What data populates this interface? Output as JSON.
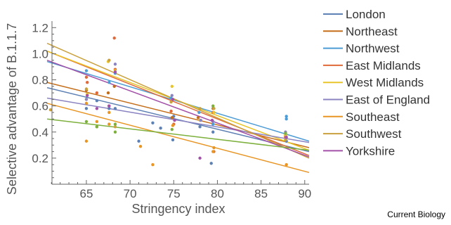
{
  "chart_data": {
    "type": "scatter",
    "title": "",
    "xlabel": "Stringency index",
    "ylabel": "Selective advantage of B.1.1.7",
    "xlim": [
      60.5,
      90.5
    ],
    "ylim": [
      0.0,
      1.25
    ],
    "xticks": [
      65,
      70,
      75,
      80,
      85,
      90
    ],
    "yticks": [
      0.2,
      0.4,
      0.6,
      0.8,
      1.0,
      1.2
    ],
    "legend_position": "right",
    "series": [
      {
        "name": "London",
        "color": "#5E81B5",
        "points": [
          [
            65.0,
            0.58
          ],
          [
            66.2,
            0.64
          ],
          [
            67.6,
            0.58
          ],
          [
            68.3,
            0.58
          ],
          [
            71.0,
            0.33
          ],
          [
            72.6,
            0.47
          ],
          [
            73.5,
            0.43
          ],
          [
            74.9,
            0.34
          ],
          [
            75.0,
            0.52
          ],
          [
            78.0,
            0.44
          ],
          [
            79.3,
            0.16
          ],
          [
            79.5,
            0.4
          ],
          [
            87.9,
            0.33
          ]
        ],
        "fit": [
          [
            60.5,
            0.74
          ],
          [
            90.5,
            0.25
          ]
        ]
      },
      {
        "name": "Northeast",
        "color": "#C56E1A",
        "points": [
          [
            65.0,
            0.72
          ],
          [
            67.5,
            0.7
          ],
          [
            68.2,
            0.75
          ],
          [
            74.8,
            0.51
          ],
          [
            77.8,
            0.51
          ],
          [
            79.5,
            0.58
          ],
          [
            87.8,
            0.37
          ]
        ],
        "fit": [
          [
            60.5,
            0.78
          ],
          [
            90.5,
            0.28
          ]
        ]
      },
      {
        "name": "Northwest",
        "color": "#4E9CD5",
        "points": [
          [
            65.0,
            0.87
          ],
          [
            67.6,
            0.78
          ],
          [
            68.3,
            0.85
          ],
          [
            74.7,
            0.66
          ],
          [
            77.9,
            0.55
          ],
          [
            79.5,
            0.46
          ],
          [
            87.9,
            0.52
          ],
          [
            87.9,
            0.5
          ]
        ],
        "fit": [
          [
            60.5,
            0.94
          ],
          [
            90.5,
            0.33
          ]
        ]
      },
      {
        "name": "East Midlands",
        "color": "#E16A3A",
        "points": [
          [
            65.0,
            0.82
          ],
          [
            65.1,
            0.78
          ],
          [
            66.2,
            0.7
          ],
          [
            67.6,
            0.6
          ],
          [
            68.2,
            1.12
          ],
          [
            68.3,
            0.88
          ],
          [
            74.7,
            0.56
          ],
          [
            75.0,
            0.46
          ],
          [
            79.5,
            0.55
          ],
          [
            79.6,
            0.25
          ],
          [
            87.8,
            0.36
          ]
        ],
        "fit": [
          [
            60.5,
            1.02
          ],
          [
            90.5,
            0.22
          ]
        ]
      },
      {
        "name": "West Midlands",
        "color": "#E8C52B",
        "points": [
          [
            65.1,
            0.69
          ],
          [
            65.0,
            0.65
          ],
          [
            67.5,
            0.94
          ],
          [
            68.3,
            0.87
          ],
          [
            74.8,
            0.75
          ],
          [
            74.9,
            0.45
          ],
          [
            78.0,
            0.49
          ],
          [
            79.6,
            0.55
          ],
          [
            87.8,
            0.38
          ]
        ],
        "fit": [
          [
            60.5,
            1.02
          ],
          [
            90.5,
            0.26
          ]
        ]
      },
      {
        "name": "East of England",
        "color": "#8B84C2",
        "points": [
          [
            65.0,
            0.65
          ],
          [
            67.6,
            0.6
          ],
          [
            68.3,
            0.92
          ],
          [
            74.8,
            0.68
          ],
          [
            78.1,
            0.49
          ],
          [
            79.5,
            0.48
          ],
          [
            87.8,
            0.4
          ]
        ],
        "fit": [
          [
            60.5,
            0.66
          ],
          [
            90.5,
            0.32
          ]
        ]
      },
      {
        "name": "Southeast",
        "color": "#E89523",
        "points": [
          [
            65.0,
            0.33
          ],
          [
            65.0,
            0.62
          ],
          [
            66.2,
            0.48
          ],
          [
            67.6,
            0.55
          ],
          [
            67.6,
            0.46
          ],
          [
            71.2,
            0.29
          ],
          [
            72.6,
            0.15
          ],
          [
            74.9,
            0.45
          ],
          [
            79.6,
            0.28
          ],
          [
            79.5,
            0.25
          ],
          [
            87.9,
            0.15
          ]
        ],
        "fit": [
          [
            60.5,
            0.62
          ],
          [
            90.5,
            0.09
          ]
        ]
      },
      {
        "name": "Southwest",
        "color": "#C9A13E",
        "points": [
          [
            60.9,
            0.57
          ],
          [
            65.0,
            0.73
          ],
          [
            66.2,
            0.44
          ],
          [
            67.6,
            0.95
          ],
          [
            68.3,
            0.44
          ],
          [
            74.7,
            0.63
          ],
          [
            78.0,
            0.58
          ],
          [
            79.6,
            0.58
          ],
          [
            87.8,
            0.34
          ]
        ],
        "fit": [
          [
            60.5,
            1.08
          ],
          [
            90.5,
            0.2
          ]
        ]
      },
      {
        "name": "Yorkshire",
        "color": "#A350A8",
        "points": [
          [
            65.1,
            0.68
          ],
          [
            66.2,
            0.58
          ],
          [
            67.6,
            0.6
          ],
          [
            68.3,
            0.86
          ],
          [
            74.9,
            0.65
          ],
          [
            75.1,
            0.49
          ],
          [
            78.0,
            0.2
          ],
          [
            79.4,
            0.49
          ],
          [
            87.9,
            0.36
          ]
        ],
        "fit": [
          [
            60.5,
            0.95
          ],
          [
            90.5,
            0.21
          ]
        ]
      }
    ],
    "extra_fit_lines": [
      {
        "color": "#7DB03C",
        "fit": [
          [
            60.5,
            0.5
          ],
          [
            90.5,
            0.26
          ]
        ]
      }
    ],
    "extra_points": [
      {
        "color": "#7DB03C",
        "points": [
          [
            65.0,
            0.48
          ],
          [
            66.2,
            0.44
          ],
          [
            68.3,
            0.4
          ],
          [
            68.3,
            0.46
          ],
          [
            74.8,
            0.42
          ],
          [
            79.5,
            0.6
          ],
          [
            87.8,
            0.39
          ]
        ]
      }
    ]
  },
  "credit": "Current Biology"
}
